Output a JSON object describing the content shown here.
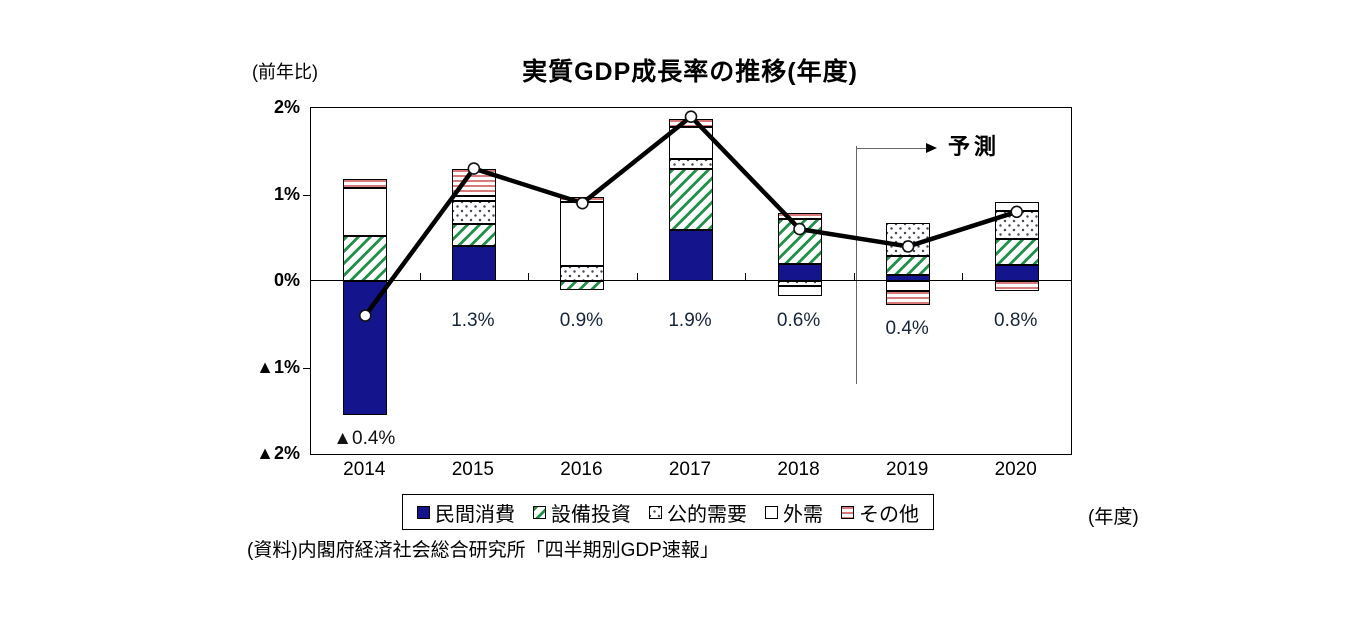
{
  "chart_data": {
    "type": "bar",
    "subtype": "stacked-bars-with-line",
    "title": "実質GDP成長率の推移(年度)",
    "y_axis_unit_label": "(前年比)",
    "x_axis_unit_label": "(年度)",
    "categories": [
      "2014",
      "2015",
      "2016",
      "2017",
      "2018",
      "2019",
      "2020"
    ],
    "series": [
      {
        "name": "民間消費",
        "pattern": "solid",
        "color": "#14148c",
        "values": [
          -1.55,
          0.41,
          0,
          0.59,
          0.2,
          0.07,
          0.18
        ]
      },
      {
        "name": "設備投資",
        "pattern": "diagonal-hatch",
        "color": "#1f9148",
        "values": [
          0.52,
          0.25,
          -0.1,
          0.7,
          0.52,
          0.22,
          0.31
        ]
      },
      {
        "name": "公的需要",
        "pattern": "dots",
        "color": "#4a4a5a",
        "values": [
          0,
          0.26,
          0.17,
          0.12,
          -0.06,
          0.38,
          0.32
        ]
      },
      {
        "name": "外需",
        "pattern": "outline-white",
        "color": "#ffffff",
        "values": [
          0.55,
          0.06,
          0.74,
          0.37,
          -0.11,
          -0.11,
          0.1
        ]
      },
      {
        "name": "その他",
        "pattern": "horizontal-stripes",
        "color": "#d87a7a",
        "values": [
          0.11,
          0.32,
          0.06,
          0.09,
          0.07,
          -0.17,
          -0.11
        ]
      }
    ],
    "line_series": {
      "name": "実質GDP成長率",
      "color": "#000000",
      "values": [
        -0.4,
        1.3,
        0.9,
        1.9,
        0.6,
        0.4,
        0.8
      ]
    },
    "point_labels": [
      "▲0.4%",
      "1.3%",
      "0.9%",
      "1.9%",
      "0.6%",
      "0.4%",
      "0.8%"
    ],
    "ylim": [
      -2,
      2
    ],
    "y_tick_labels": [
      "2%",
      "1%",
      "0%",
      "▲1%",
      "▲2%"
    ],
    "grid": "zero-line-only",
    "legend_position": "bottom",
    "forecast": {
      "label": "予測",
      "start_category": "2019"
    },
    "source": "(資料)内閣府経済社会総合研究所「四半期別GDP速報」"
  }
}
